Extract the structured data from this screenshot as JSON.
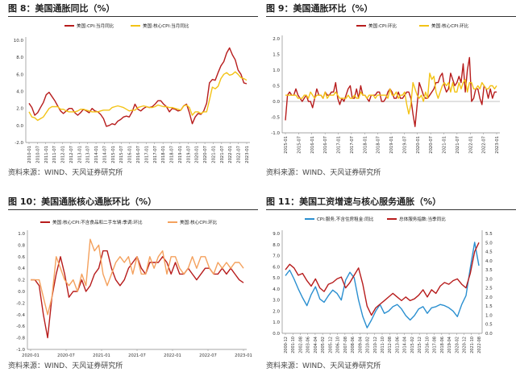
{
  "panels": [
    {
      "figure": "图 8：",
      "title": "美国通胀同比（%）",
      "source": "资料来源：WIND、天风证券研究所"
    },
    {
      "figure": "图 9：",
      "title": "美国通胀环比（%）",
      "source": "资料来源：WIND、天风证券研究所"
    },
    {
      "figure": "图 10：",
      "title": "美国通胀核心通胀环比（%）",
      "source": "资料来源：WIND、天风证券研究所"
    },
    {
      "figure": "图 11：",
      "title": "美国工资增速与核心服务通胀（%）",
      "source": "资料来源：WIND、天风证券研究所"
    }
  ],
  "colors": {
    "red": "#b71c1c",
    "yellow": "#f3c316",
    "orange": "#f4a15d",
    "blue": "#2a8fd0",
    "axis": "#888888"
  },
  "chart_data": [
    {
      "type": "line",
      "ylim": [
        -2,
        10
      ],
      "yticks": [
        "10.0",
        "8.0",
        "6.0",
        "4.0",
        "2.0",
        "0.0",
        "-2.0"
      ],
      "xticks": [
        "2010-01",
        "2010-07",
        "2011-01",
        "2011-07",
        "2012-01",
        "2012-07",
        "2013-01",
        "2013-07",
        "2014-01",
        "2014-07",
        "2015-01",
        "2015-07",
        "2016-01",
        "2016-07",
        "2017-01",
        "2017-07",
        "2018-01",
        "2018-07",
        "2019-01",
        "2019-07",
        "2020-01",
        "2020-07",
        "2021-01",
        "2021-07",
        "2022-01",
        "2022-07",
        "2023-01"
      ],
      "series": [
        {
          "name": "美国:CPI:当月同比",
          "values": [
            2.6,
            2.1,
            1.2,
            1.5,
            2.1,
            2.7,
            3.6,
            3.9,
            3.4,
            2.9,
            2.3,
            1.7,
            1.4,
            1.7,
            2.0,
            2.0,
            1.5,
            1.2,
            1.5,
            1.9,
            1.7,
            1.5,
            2.0,
            1.7,
            1.6,
            1.3,
            0.8,
            -0.1,
            0.0,
            0.2,
            0.1,
            0.5,
            0.7,
            1.0,
            1.1,
            1.0,
            1.6,
            2.5,
            1.9,
            1.7,
            2.0,
            2.2,
            2.1,
            2.2,
            2.5,
            2.9,
            2.9,
            2.5,
            2.2,
            1.6,
            2.0,
            1.9,
            1.7,
            1.8,
            2.3,
            2.5,
            1.5,
            0.2,
            1.0,
            1.4,
            1.3,
            1.7,
            2.6,
            5.0,
            5.4,
            5.3,
            6.2,
            7.0,
            7.5,
            8.5,
            9.1,
            8.3,
            7.7,
            6.5,
            6.0,
            5.0,
            4.9
          ]
        },
        {
          "name": "美国:核心CPI:当月同比",
          "values": [
            1.6,
            1.0,
            0.9,
            0.6,
            0.8,
            1.0,
            1.5,
            2.0,
            2.2,
            2.2,
            2.2,
            1.9,
            1.9,
            1.7,
            1.6,
            1.6,
            1.6,
            1.7,
            1.9,
            1.9,
            1.8,
            1.7,
            1.6,
            1.6,
            1.6,
            1.7,
            1.8,
            1.8,
            1.8,
            2.1,
            2.2,
            2.3,
            2.2,
            2.1,
            1.9,
            1.7,
            1.8,
            1.8,
            2.1,
            2.2,
            2.3,
            2.2,
            2.1,
            2.1,
            2.2,
            2.4,
            2.3,
            2.2,
            2.2,
            2.1,
            2.1,
            2.0,
            1.9,
            1.8,
            2.3,
            2.4,
            2.1,
            1.2,
            1.6,
            1.6,
            1.4,
            1.6,
            1.6,
            3.0,
            4.5,
            4.3,
            4.6,
            5.5,
            6.0,
            6.2,
            5.9,
            6.0,
            6.3,
            6.0,
            5.6,
            5.5,
            5.3
          ]
        }
      ]
    },
    {
      "type": "line",
      "ylim": [
        -1,
        2
      ],
      "yticks": [
        "2.0",
        "1.5",
        "1.0",
        "0.5",
        "0.0",
        "-0.5",
        "-1.0"
      ],
      "xticks": [
        "2015-01",
        "2015-07",
        "2016-01",
        "2016-07",
        "2017-01",
        "2017-07",
        "2018-01",
        "2018-07",
        "2019-01",
        "2019-07",
        "2020-01",
        "2020-07",
        "2021-01",
        "2021-07",
        "2022-01",
        "2022-07",
        "2023-01"
      ],
      "series": [
        {
          "name": "美国:CPI:环比",
          "values": [
            -0.6,
            0.2,
            0.3,
            0.2,
            0.2,
            0.4,
            0.2,
            0.1,
            0.0,
            0.1,
            0.2,
            0.0,
            0.0,
            -0.2,
            0.1,
            0.4,
            0.2,
            0.2,
            0.1,
            0.3,
            0.2,
            0.2,
            0.3,
            0.3,
            0.6,
            0.1,
            -0.1,
            0.1,
            0.0,
            0.2,
            0.4,
            0.5,
            0.1,
            0.1,
            0.4,
            0.1,
            0.5,
            0.2,
            0.2,
            0.1,
            0.0,
            0.2,
            0.2,
            0.2,
            0.3,
            0.3,
            0.0,
            0.0,
            0.1,
            0.3,
            0.4,
            0.3,
            0.1,
            0.1,
            0.3,
            0.1,
            0.1,
            0.2,
            0.3,
            0.3,
            0.1,
            -0.4,
            -0.8,
            -0.1,
            0.6,
            0.4,
            0.2,
            0.1,
            0.1,
            0.2,
            0.3,
            0.4,
            0.6,
            0.6,
            0.8,
            0.9,
            0.5,
            0.3,
            0.4,
            0.9,
            0.7,
            0.5,
            0.6,
            0.8,
            0.6,
            1.2,
            0.3,
            1.0,
            1.4,
            0.0,
            0.1,
            0.4,
            0.4,
            0.1,
            -0.1,
            0.5,
            0.4,
            0.1,
            0.4,
            0.1,
            0.3,
            0.3
          ]
        },
        {
          "name": "美国:核心CPI:环比",
          "values": [
            0.2,
            0.2,
            0.2,
            0.2,
            0.2,
            0.2,
            0.1,
            0.1,
            0.1,
            0.2,
            0.2,
            0.1,
            0.3,
            0.2,
            0.1,
            0.2,
            0.2,
            0.2,
            0.1,
            0.3,
            0.1,
            0.2,
            0.2,
            0.2,
            0.3,
            0.2,
            0.1,
            0.1,
            0.1,
            0.1,
            0.2,
            0.1,
            0.1,
            0.2,
            0.1,
            0.1,
            0.3,
            0.2,
            0.2,
            0.1,
            0.2,
            0.2,
            0.2,
            0.1,
            0.2,
            0.2,
            0.2,
            0.2,
            0.2,
            0.1,
            0.4,
            0.2,
            0.2,
            0.3,
            0.1,
            0.2,
            0.2,
            0.3,
            -0.1,
            -0.4,
            -0.1,
            0.6,
            0.4,
            0.2,
            0.1,
            0.2,
            0.0,
            0.3,
            0.1,
            0.9,
            0.7,
            0.8,
            0.3,
            0.1,
            0.3,
            0.5,
            0.6,
            0.5,
            0.6,
            0.3,
            0.6,
            0.3,
            0.3,
            0.6,
            0.4,
            0.6,
            0.7,
            0.3,
            0.6,
            0.6,
            0.4,
            0.4,
            0.5,
            0.4,
            0.6,
            0.5,
            0.4,
            0.4,
            0.5,
            0.5,
            0.4,
            0.5
          ]
        }
      ]
    },
    {
      "type": "line",
      "ylim": [
        -1,
        1
      ],
      "yticks": [
        "1.0",
        "0.8",
        "0.6",
        "0.4",
        "0.2",
        "0.0",
        "-0.2",
        "-0.4",
        "-0.6",
        "-0.8",
        "-1.0"
      ],
      "xticks": [
        "2020-01",
        "2020-07",
        "2021-01",
        "2021-07",
        "2022-01",
        "2022-07",
        "2023-01"
      ],
      "series": [
        {
          "name": "美国:核心CPI:不含食品和二手车辆:季调:环比",
          "values": [
            0.2,
            0.2,
            0.1,
            -0.4,
            -0.8,
            -0.1,
            0.3,
            0.6,
            0.3,
            -0.1,
            0.0,
            0.0,
            0.2,
            0.0,
            0.1,
            0.3,
            0.4,
            0.7,
            0.7,
            0.4,
            0.2,
            0.1,
            0.2,
            0.4,
            0.5,
            0.6,
            0.4,
            0.3,
            0.5,
            0.5,
            0.5,
            0.6,
            0.5,
            0.3,
            0.5,
            0.3,
            0.3,
            0.4,
            0.3,
            0.2,
            0.3,
            0.4,
            0.4,
            0.3,
            0.3,
            0.4,
            0.3,
            0.4,
            0.3,
            0.2,
            0.15
          ]
        },
        {
          "name": "美国:核心CPI:环比",
          "values": [
            0.2,
            0.2,
            0.2,
            -0.1,
            -0.4,
            -0.1,
            0.6,
            0.4,
            0.2,
            0.1,
            0.2,
            0.0,
            0.3,
            0.1,
            0.9,
            0.7,
            0.8,
            0.3,
            0.1,
            0.3,
            0.5,
            0.6,
            0.5,
            0.6,
            0.3,
            0.6,
            0.3,
            0.3,
            0.6,
            0.4,
            0.6,
            0.7,
            0.3,
            0.6,
            0.6,
            0.4,
            0.3,
            0.4,
            0.6,
            0.4,
            0.6,
            0.6,
            0.4,
            0.3,
            0.5,
            0.4,
            0.5,
            0.4,
            0.5,
            0.5,
            0.4
          ]
        }
      ]
    },
    {
      "type": "line",
      "ylim": [
        0,
        9
      ],
      "y2lim": [
        0,
        5.5
      ],
      "yticks": [
        "9.0",
        "8.0",
        "7.0",
        "6.0",
        "5.0",
        "4.0",
        "3.0",
        "2.0",
        "1.0",
        "0.0"
      ],
      "y2ticks": [
        "5.5",
        "5.0",
        "4.5",
        "4.0",
        "3.5",
        "3.0",
        "2.5",
        "2.0",
        "1.5",
        "1.0",
        "0.5",
        "0.0"
      ],
      "xticks": [
        "2000-12",
        "2001-10",
        "2002-08",
        "2003-06",
        "2004-04",
        "2005-02",
        "2005-12",
        "2006-10",
        "2007-08",
        "2008-06",
        "2009-04",
        "2010-02",
        "2010-12",
        "2011-10",
        "2012-08",
        "2013-06",
        "2014-04",
        "2015-02",
        "2015-12",
        "2016-10",
        "2017-08",
        "2018-06",
        "2019-04",
        "2020-02",
        "2020-12",
        "2021-10",
        "2022-08"
      ],
      "series": [
        {
          "name": "CPI:服务,不含住房租金:同比",
          "axis": "left",
          "values": [
            5.2,
            5.7,
            4.9,
            4.0,
            3.2,
            2.5,
            3.5,
            4.2,
            3.1,
            2.8,
            3.4,
            3.9,
            3.6,
            3.0,
            4.8,
            5.5,
            5.0,
            3.0,
            1.5,
            0.5,
            1.2,
            2.0,
            2.6,
            1.8,
            2.0,
            2.4,
            2.6,
            2.2,
            1.6,
            1.2,
            1.6,
            2.2,
            2.4,
            1.8,
            2.3,
            2.4,
            2.6,
            2.5,
            2.3,
            2.0,
            1.5,
            2.6,
            3.4,
            5.9,
            8.2,
            6.1
          ]
        },
        {
          "name": "总体服务指数:当季同比",
          "axis": "right",
          "values": [
            3.5,
            3.8,
            3.6,
            3.2,
            3.3,
            2.9,
            2.6,
            3.0,
            2.5,
            2.3,
            2.7,
            2.8,
            3.0,
            3.1,
            2.5,
            2.8,
            3.2,
            3.6,
            2.7,
            1.5,
            1.0,
            1.4,
            1.6,
            1.8,
            2.0,
            2.2,
            2.0,
            1.8,
            2.0,
            1.8,
            1.9,
            2.1,
            2.4,
            2.0,
            2.4,
            2.2,
            2.6,
            2.8,
            2.7,
            2.9,
            3.0,
            2.7,
            2.5,
            3.3,
            4.5,
            5.0
          ]
        }
      ]
    }
  ]
}
